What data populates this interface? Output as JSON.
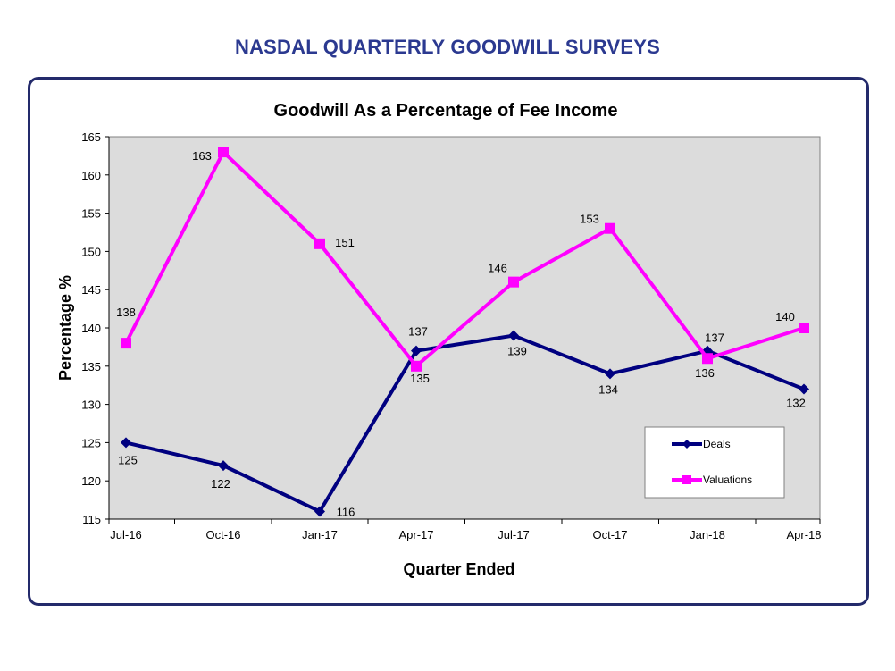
{
  "page": {
    "heading": "NASDAL QUARTERLY GOODWILL SURVEYS"
  },
  "chart_data": {
    "type": "line",
    "title": "Goodwill As a Percentage of Fee Income",
    "xlabel": "Quarter Ended",
    "ylabel": "Percentage %",
    "categories": [
      "Jul-16",
      "Oct-16",
      "Jan-17",
      "Apr-17",
      "Jul-17",
      "Oct-17",
      "Jan-18",
      "Apr-18"
    ],
    "ylim": [
      115,
      165
    ],
    "yticks": [
      115,
      120,
      125,
      130,
      135,
      140,
      145,
      150,
      155,
      160,
      165
    ],
    "grid": false,
    "legend": "bottom-right",
    "background": "#dcdcdc",
    "series": [
      {
        "name": "Deals",
        "color": "#000080",
        "marker": "diamond",
        "values": [
          125,
          122,
          116,
          137,
          139,
          134,
          137,
          132
        ]
      },
      {
        "name": "Valuations",
        "color": "#ff00ff",
        "marker": "square",
        "values": [
          138,
          163,
          151,
          135,
          146,
          153,
          136,
          140
        ]
      }
    ]
  }
}
